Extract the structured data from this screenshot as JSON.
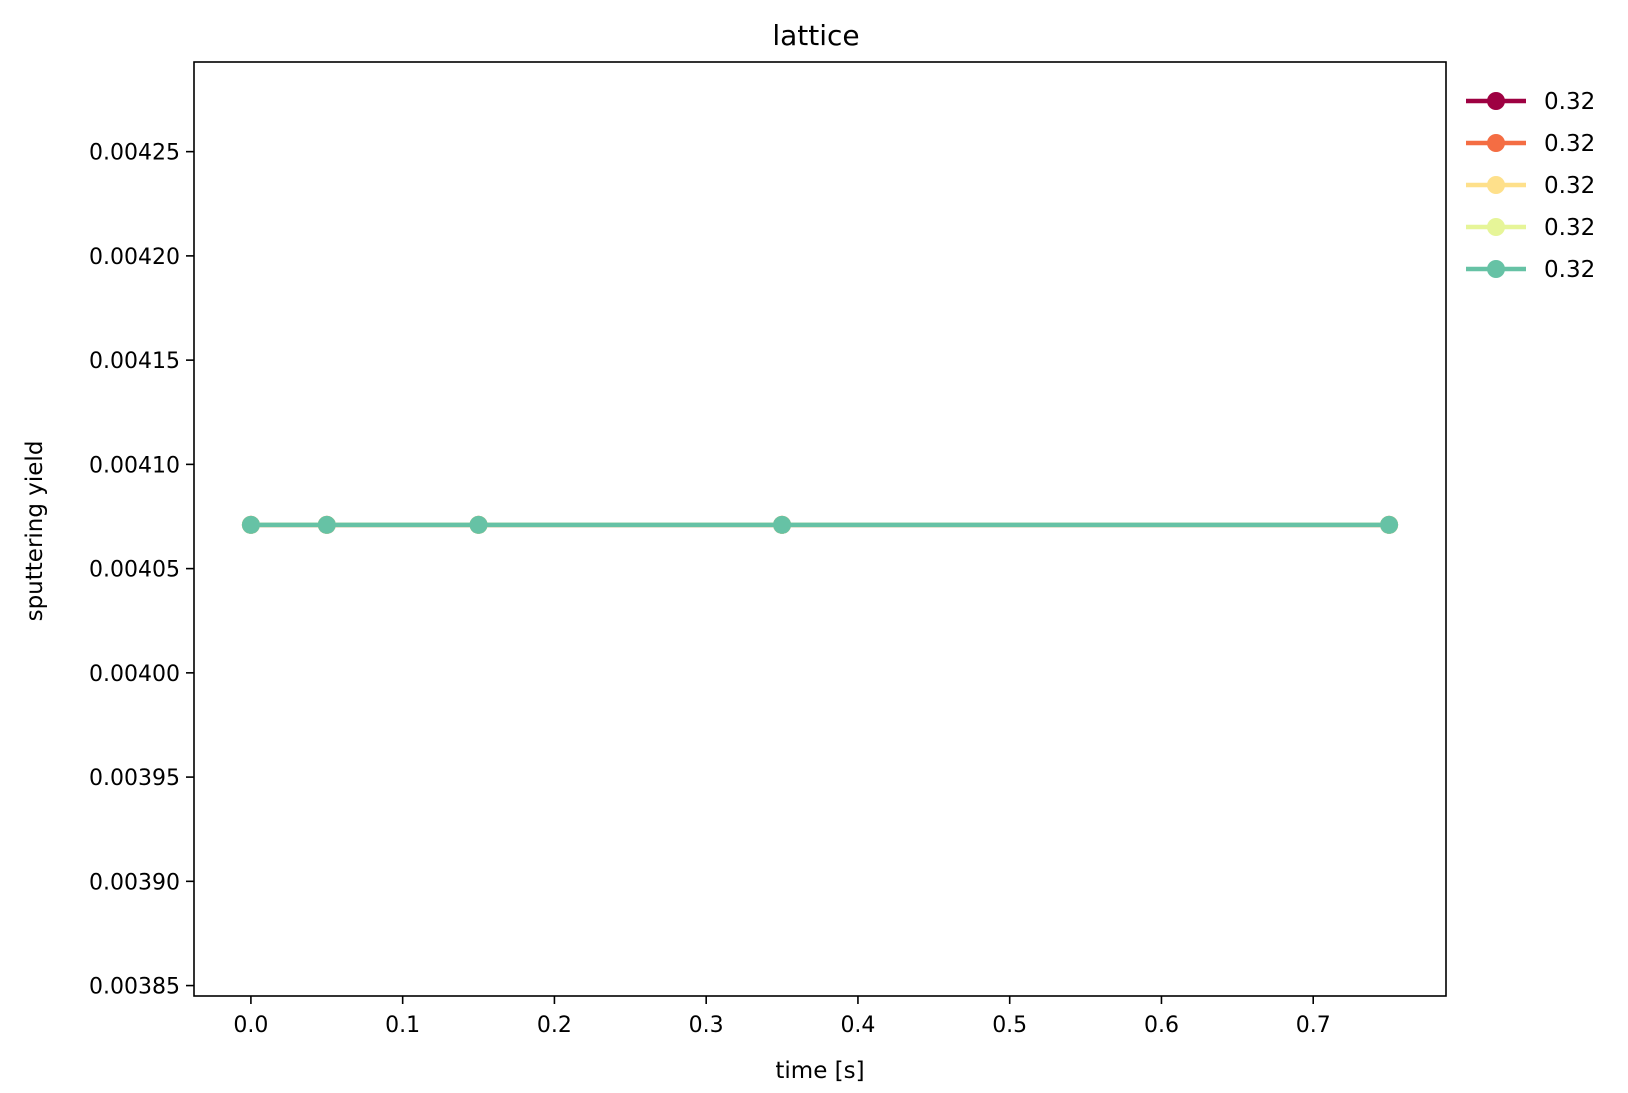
{
  "chart_data": {
    "type": "line",
    "title": "lattice",
    "xlabel": "time [s]",
    "ylabel": "sputtering yield",
    "xlim": [
      -0.0375,
      0.7875
    ],
    "ylim": [
      0.003845,
      0.004293
    ],
    "xticks": [
      0.0,
      0.1,
      0.2,
      0.3,
      0.4,
      0.5,
      0.6,
      0.7
    ],
    "xtick_labels": [
      "0.0",
      "0.1",
      "0.2",
      "0.3",
      "0.4",
      "0.5",
      "0.6",
      "0.7"
    ],
    "yticks": [
      0.00385,
      0.0039,
      0.00395,
      0.004,
      0.00405,
      0.0041,
      0.00415,
      0.0042,
      0.00425
    ],
    "ytick_labels": [
      "0.00385",
      "0.00390",
      "0.00395",
      "0.00400",
      "0.00405",
      "0.00410",
      "0.00415",
      "0.00420",
      "0.00425"
    ],
    "grid": false,
    "legend_position": "outside-right-top",
    "series": [
      {
        "name": "0.32",
        "color": "#9e0142",
        "x": [
          0.0,
          0.05,
          0.15,
          0.35,
          0.75
        ],
        "y": [
          0.004071,
          0.004071,
          0.004071,
          0.004071,
          0.004071
        ]
      },
      {
        "name": "0.32",
        "color": "#f46d43",
        "x": [
          0.0,
          0.05,
          0.15,
          0.35,
          0.75
        ],
        "y": [
          0.004071,
          0.004071,
          0.004071,
          0.004071,
          0.004071
        ]
      },
      {
        "name": "0.32",
        "color": "#fee08b",
        "x": [
          0.0,
          0.05,
          0.15,
          0.35,
          0.75
        ],
        "y": [
          0.004071,
          0.004071,
          0.004071,
          0.004071,
          0.004071
        ]
      },
      {
        "name": "0.32",
        "color": "#e6f598",
        "x": [
          0.0,
          0.05,
          0.15,
          0.35,
          0.75
        ],
        "y": [
          0.004071,
          0.004071,
          0.004071,
          0.004071,
          0.004071
        ]
      },
      {
        "name": "0.32",
        "color": "#66c2a5",
        "x": [
          0.0,
          0.05,
          0.15,
          0.35,
          0.75
        ],
        "y": [
          0.004071,
          0.004071,
          0.004071,
          0.004071,
          0.004071
        ]
      }
    ]
  }
}
